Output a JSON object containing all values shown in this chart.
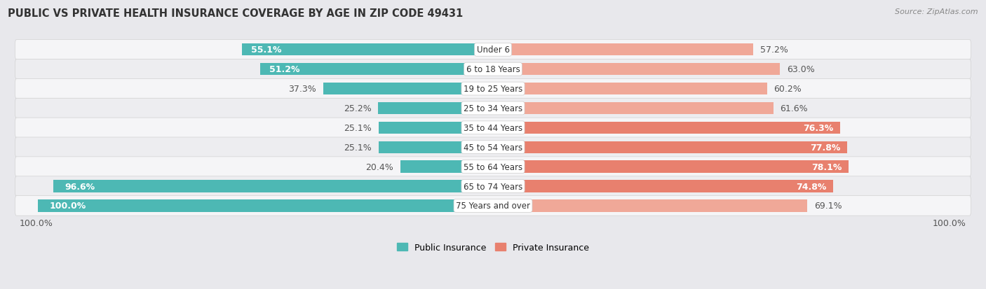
{
  "title": "PUBLIC VS PRIVATE HEALTH INSURANCE COVERAGE BY AGE IN ZIP CODE 49431",
  "source": "Source: ZipAtlas.com",
  "categories": [
    "Under 6",
    "6 to 18 Years",
    "19 to 25 Years",
    "25 to 34 Years",
    "35 to 44 Years",
    "45 to 54 Years",
    "55 to 64 Years",
    "65 to 74 Years",
    "75 Years and over"
  ],
  "public": [
    55.1,
    51.2,
    37.3,
    25.2,
    25.1,
    25.1,
    20.4,
    96.6,
    100.0
  ],
  "private": [
    57.2,
    63.0,
    60.2,
    61.6,
    76.3,
    77.8,
    78.1,
    74.8,
    69.1
  ],
  "public_color": "#4db8b4",
  "private_color": "#e8806e",
  "private_color_light": "#f0a898",
  "bg_color": "#e8e8ec",
  "row_white": "#f5f5f7",
  "row_light": "#ededf0",
  "bar_height": 0.62,
  "label_fontsize": 9.0,
  "title_fontsize": 10.5,
  "max_val": 100.0,
  "legend_public": "Public Insurance",
  "legend_private": "Private Insurance"
}
